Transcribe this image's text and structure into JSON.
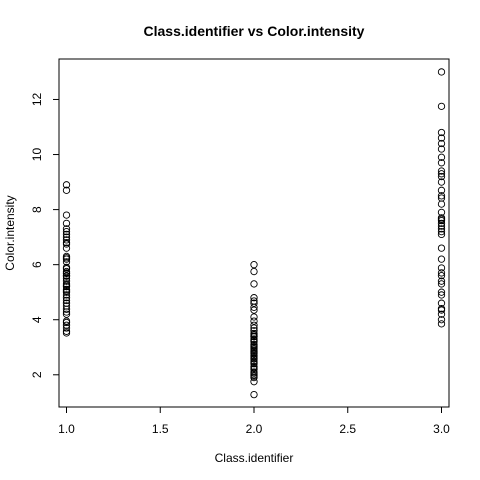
{
  "chart_data": {
    "type": "scatter",
    "title": "Class.identifier vs Color.intensity",
    "xlabel": "Class.identifier",
    "ylabel": "Color.intensity",
    "xlim": [
      0.96,
      3.04
    ],
    "ylim": [
      0.83,
      13.47
    ],
    "xticks": [
      1.0,
      1.5,
      2.0,
      2.5,
      3.0
    ],
    "xtick_labels": [
      "1.0",
      "1.5",
      "2.0",
      "2.5",
      "3.0"
    ],
    "yticks": [
      2,
      4,
      6,
      8,
      10,
      12
    ],
    "ytick_labels": [
      "2",
      "4",
      "6",
      "8",
      "10",
      "12"
    ],
    "grid": false,
    "marker": "open-circle",
    "marker_color": "#000000",
    "series": [
      {
        "x": 1,
        "values": [
          8.9,
          8.7,
          7.8,
          7.5,
          7.3,
          7.2,
          7.1,
          7.0,
          6.9,
          6.8,
          6.75,
          6.6,
          6.3,
          6.25,
          6.2,
          6.1,
          5.9,
          5.85,
          5.75,
          5.7,
          5.68,
          5.6,
          5.58,
          5.5,
          5.4,
          5.3,
          5.25,
          5.2,
          5.1,
          5.05,
          5.0,
          4.9,
          4.8,
          4.7,
          4.6,
          4.5,
          4.38,
          4.28,
          4.2,
          3.95,
          3.9,
          3.8,
          3.7,
          3.58,
          3.52
        ]
      },
      {
        "x": 2,
        "values": [
          6.0,
          5.75,
          5.3,
          4.8,
          4.68,
          4.6,
          4.45,
          4.35,
          4.1,
          3.95,
          3.8,
          3.7,
          3.6,
          3.5,
          3.45,
          3.4,
          3.38,
          3.3,
          3.25,
          3.2,
          3.1,
          3.05,
          3.0,
          2.95,
          2.9,
          2.85,
          2.8,
          2.76,
          2.7,
          2.65,
          2.6,
          2.57,
          2.5,
          2.45,
          2.4,
          2.3,
          2.25,
          2.2,
          2.1,
          2.06,
          2.0,
          1.95,
          1.9,
          1.75,
          1.28
        ]
      },
      {
        "x": 3,
        "values": [
          13.0,
          11.75,
          10.8,
          10.6,
          10.4,
          10.2,
          9.9,
          9.7,
          9.4,
          9.3,
          9.2,
          9.0,
          8.7,
          8.5,
          8.42,
          8.2,
          7.9,
          7.7,
          7.65,
          7.6,
          7.5,
          7.4,
          7.3,
          7.2,
          7.1,
          6.6,
          6.2,
          5.88,
          5.7,
          5.6,
          5.4,
          5.3,
          5.0,
          4.9,
          4.6,
          4.4,
          4.35,
          4.2,
          4.0,
          3.85
        ]
      }
    ]
  }
}
